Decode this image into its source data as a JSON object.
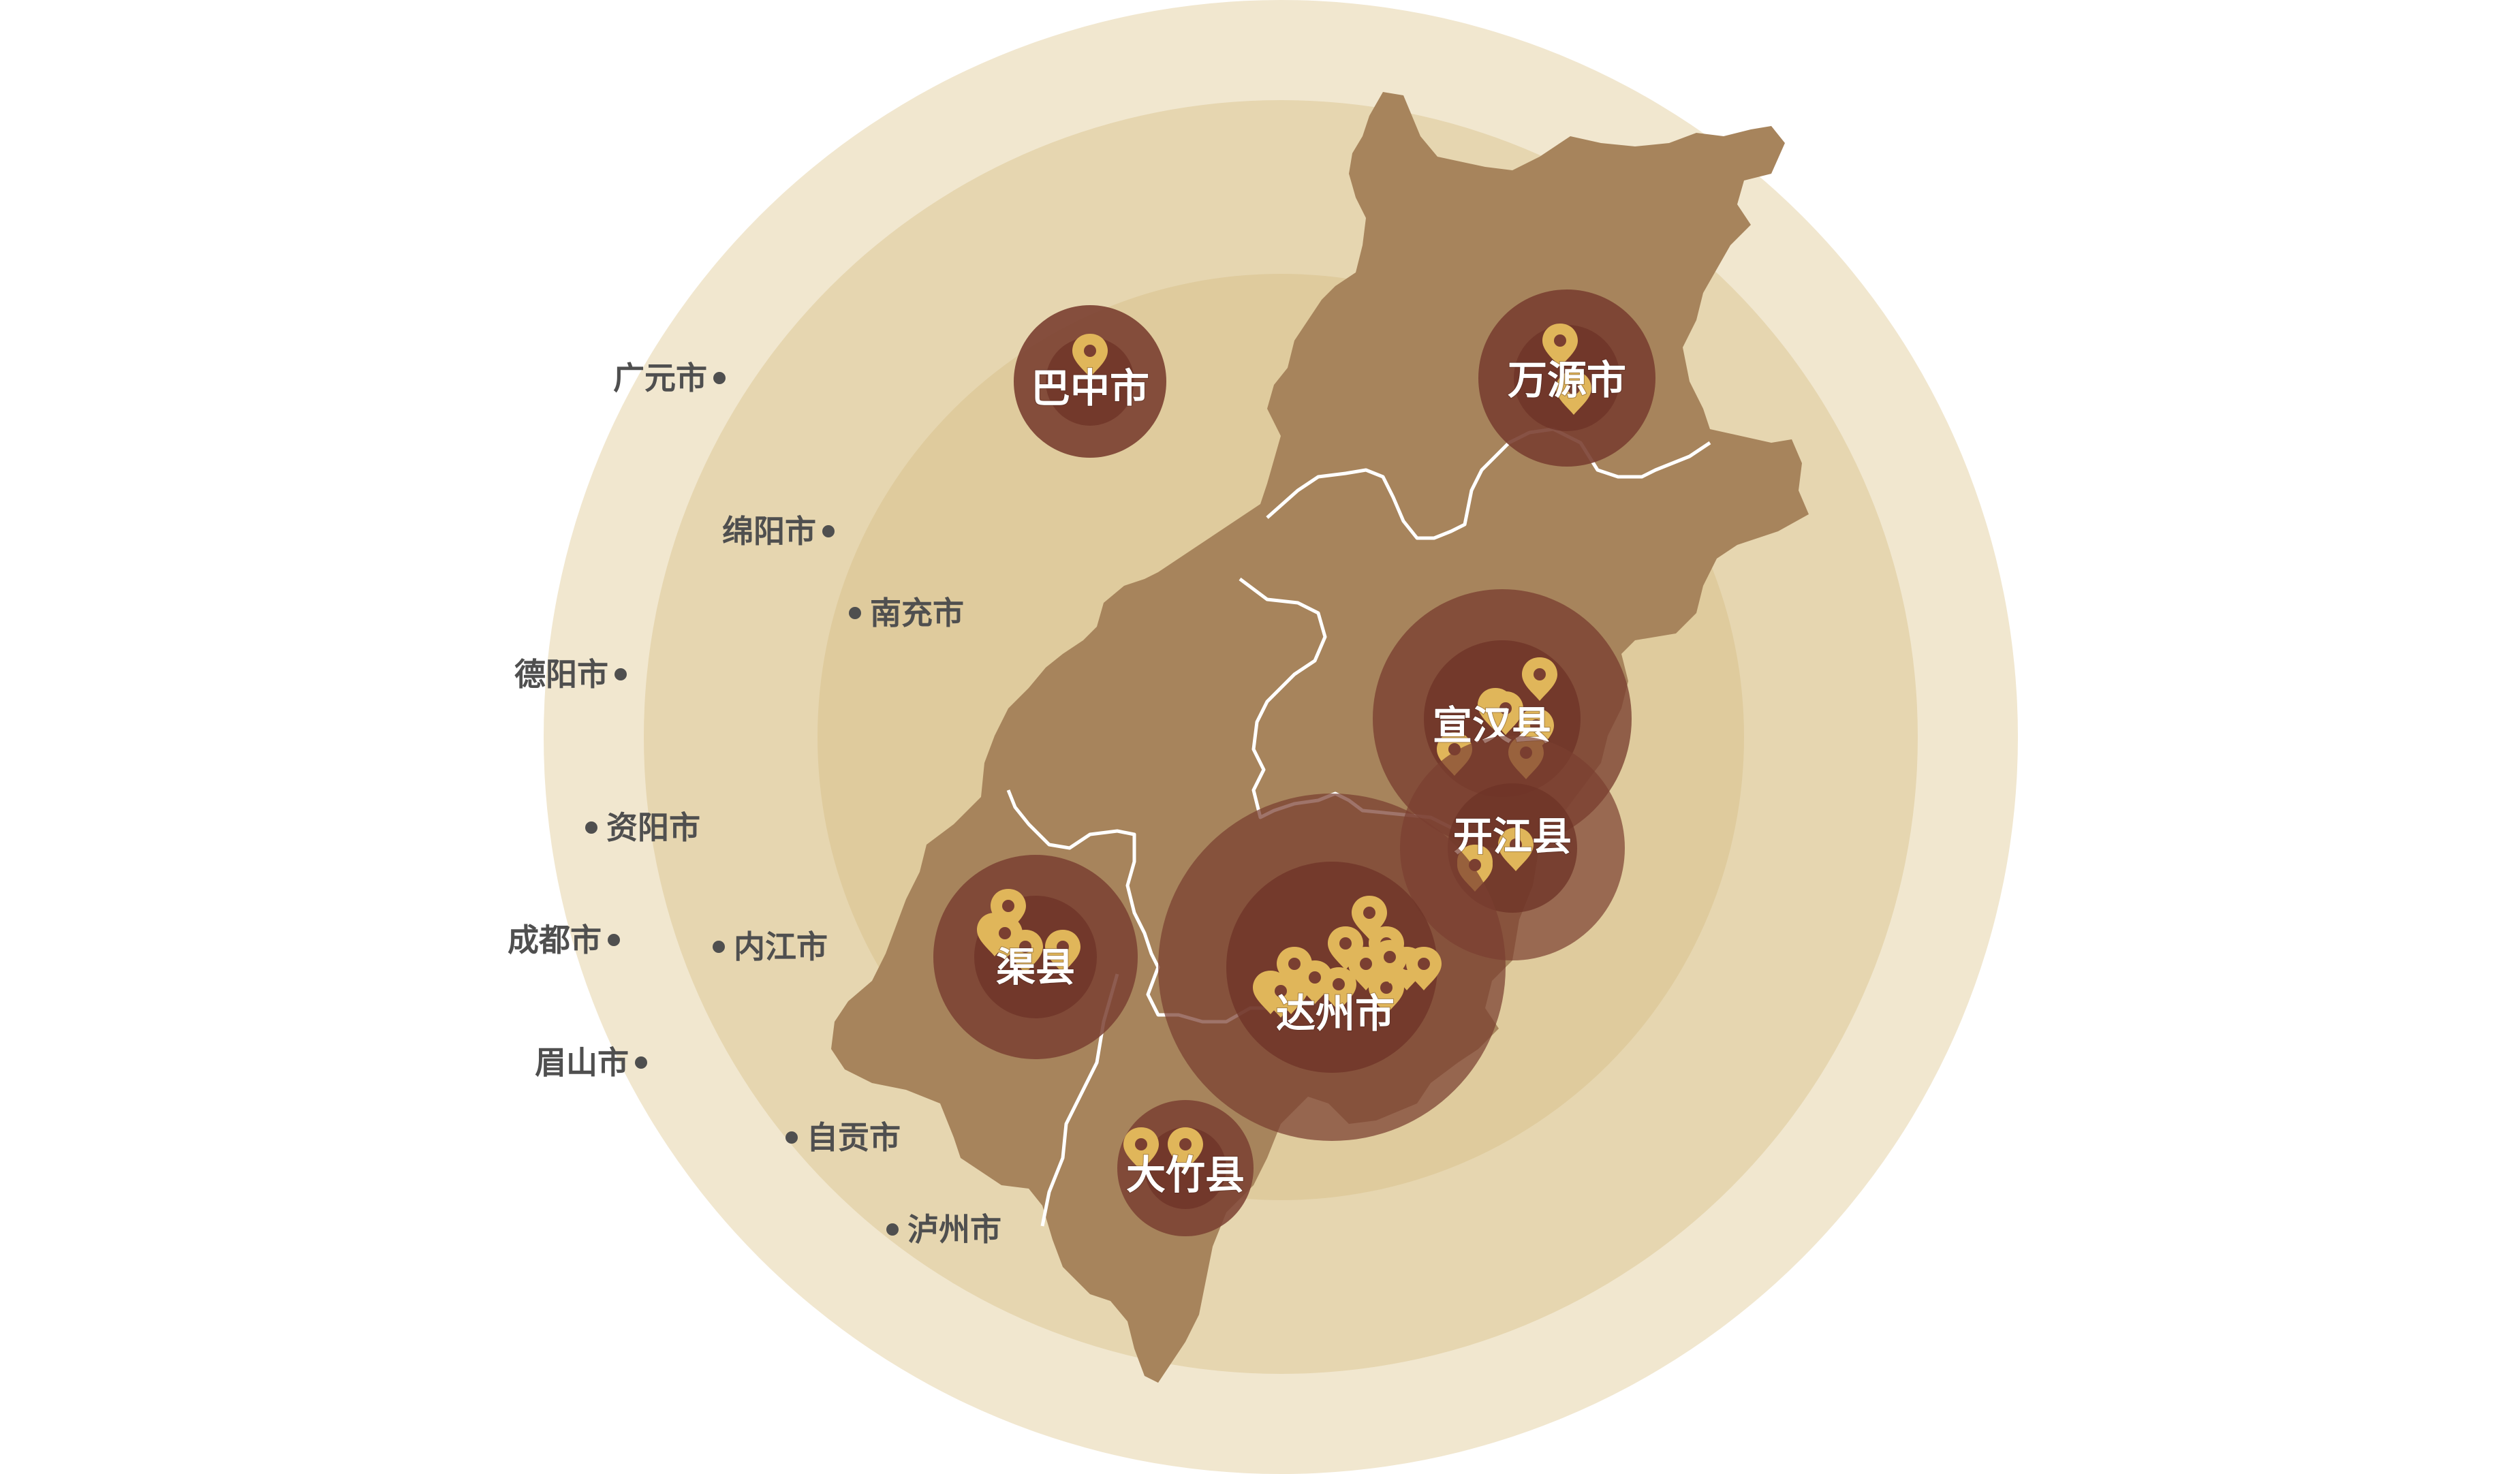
{
  "map": {
    "colors": {
      "ring_outer": "#f1e7cf",
      "ring_middle": "#e6d6b0",
      "ring_inner": "#dfcb9d",
      "region_fill": "#a7845c",
      "hub_outer": "#7a3f31",
      "hub_inner": "#6d3327",
      "pin": "#e0b65a"
    },
    "external_cities": [
      {
        "name": "广元市"
      },
      {
        "name": "绵阳市"
      },
      {
        "name": "南充市"
      },
      {
        "name": "德阳市"
      },
      {
        "name": "资阳市"
      },
      {
        "name": "成都市"
      },
      {
        "name": "内江市"
      },
      {
        "name": "眉山市"
      },
      {
        "name": "自贡市"
      },
      {
        "name": "泸州市"
      }
    ],
    "centers": [
      {
        "name": "巴中市",
        "pins": 1
      },
      {
        "name": "万源市",
        "pins": 2
      },
      {
        "name": "宣汉县",
        "pins": 6
      },
      {
        "name": "开江县",
        "pins": 3
      },
      {
        "name": "渠县",
        "pins": 5
      },
      {
        "name": "达州市",
        "pins": 14
      },
      {
        "name": "大竹县",
        "pins": 2
      }
    ]
  }
}
